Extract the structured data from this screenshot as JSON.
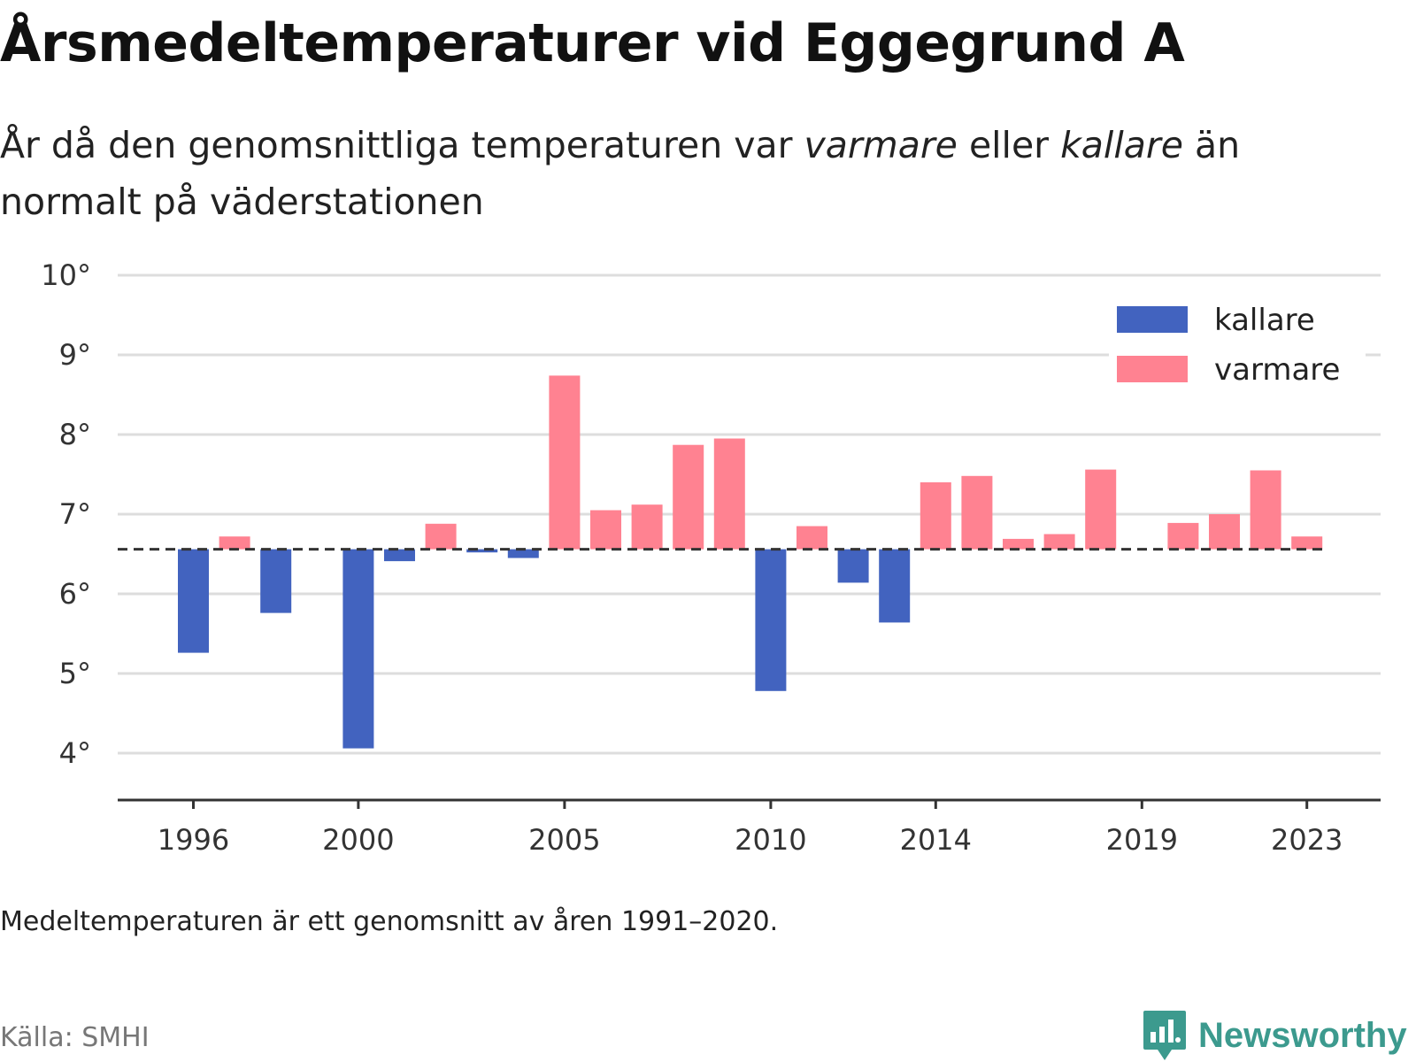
{
  "title": "Årsmedeltemperaturer vid Eggegrund A",
  "subtitle": {
    "part1": "År då den genomsnittliga temperaturen var ",
    "warm_word": "varmare",
    "part2": " eller ",
    "cold_word": "kallare",
    "part3": " än normalt på väderstationen"
  },
  "note": "Medeltemperaturen är ett genomsnitt av åren 1991–2020.",
  "source": "Källa: SMHI",
  "brand": {
    "name": "Newsworthy",
    "icon": "newsworthy-logo-icon"
  },
  "colors": {
    "colder": "#4263bf",
    "warmer": "#ff8291",
    "baseline": "#333333",
    "grid": "#dddddd",
    "brand": "#3c9a8e"
  },
  "chart_data": {
    "type": "bar",
    "title": "Årsmedeltemperaturer vid Eggegrund A",
    "baseline": 6.56,
    "ylim": [
      3.5,
      10
    ],
    "y_ticks": [
      4,
      5,
      6,
      7,
      8,
      9,
      10
    ],
    "y_tick_labels": [
      "4°",
      "5°",
      "6°",
      "7°",
      "8°",
      "9°",
      "10°"
    ],
    "x_ticks": [
      1996,
      2000,
      2005,
      2010,
      2014,
      2019,
      2023
    ],
    "legend": [
      {
        "key": "colder",
        "label": "kallare"
      },
      {
        "key": "warmer",
        "label": "varmare"
      }
    ],
    "legend_position": "top-right",
    "grid": true,
    "years": [
      1996,
      1997,
      1998,
      1999,
      2000,
      2001,
      2002,
      2003,
      2004,
      2005,
      2006,
      2007,
      2008,
      2009,
      2010,
      2011,
      2012,
      2013,
      2014,
      2015,
      2016,
      2017,
      2018,
      2019,
      2020,
      2021,
      2022,
      2023
    ],
    "values": [
      5.26,
      6.72,
      5.76,
      null,
      4.06,
      6.41,
      6.88,
      6.52,
      6.45,
      8.74,
      7.05,
      7.12,
      7.87,
      7.95,
      4.78,
      6.85,
      6.14,
      5.64,
      7.4,
      7.48,
      6.69,
      6.75,
      7.56,
      null,
      6.89,
      7.0,
      7.55,
      6.72
    ]
  }
}
